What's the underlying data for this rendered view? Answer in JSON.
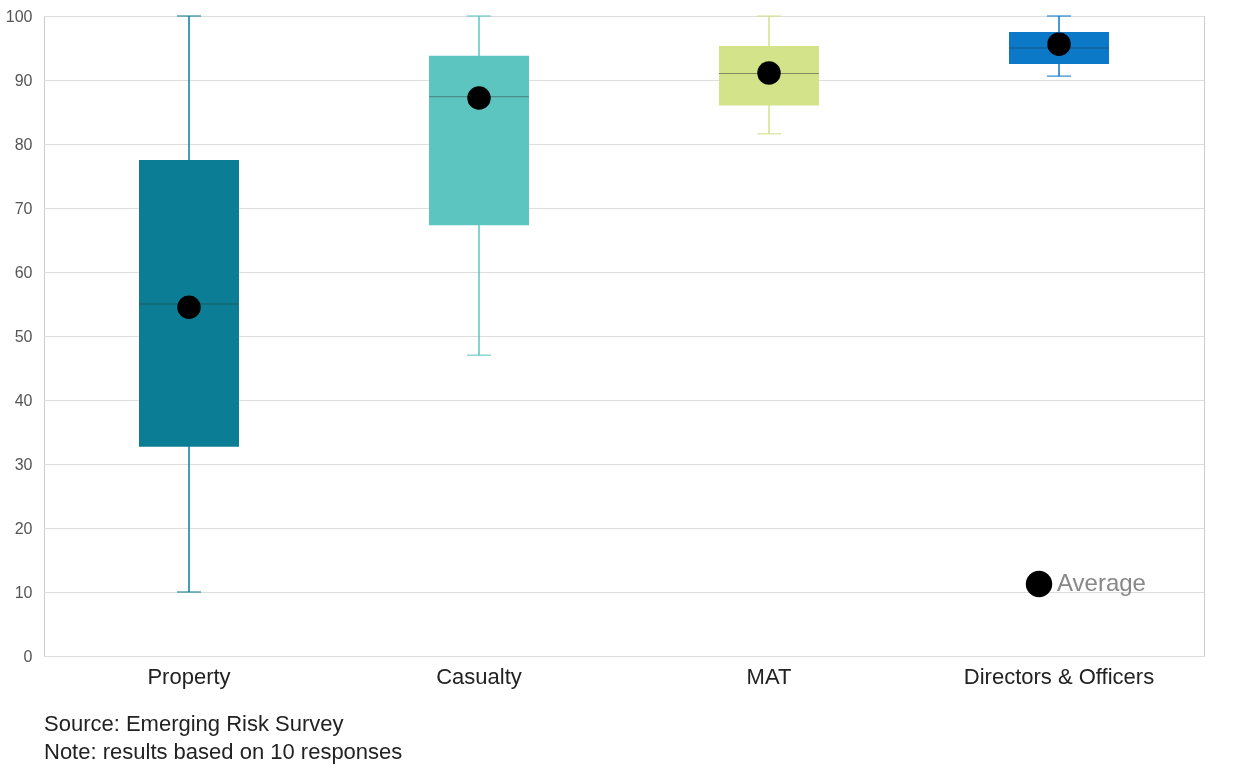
{
  "chart_data": {
    "type": "box",
    "categories": [
      "Property",
      "Casualty",
      "MAT",
      "Directors & Officers"
    ],
    "colors": [
      "#0b7e96",
      "#5cc5c0",
      "#d2e38a",
      "#0b78c8"
    ],
    "boxes": [
      {
        "low": 10,
        "q1": 32.7,
        "median": 55,
        "q3": 77.5,
        "high": 100
      },
      {
        "low": 47,
        "q1": 67.3,
        "median": 87.4,
        "q3": 93.8,
        "high": 100
      },
      {
        "low": 81.6,
        "q1": 86,
        "median": 91,
        "q3": 95.3,
        "high": 100
      },
      {
        "low": 90.6,
        "q1": 92.5,
        "median": 95,
        "q3": 97.5,
        "high": 100
      }
    ],
    "series": [
      {
        "type": "scatter",
        "name": "Average",
        "color": "#000000",
        "x": [
          "Property",
          "Casualty",
          "MAT",
          "Directors & Officers"
        ],
        "values": [
          54.5,
          87.2,
          91.1,
          95.6
        ]
      }
    ],
    "ylim": [
      0,
      100
    ],
    "yticks": [
      0,
      10,
      20,
      30,
      40,
      50,
      60,
      70,
      80,
      90,
      100
    ],
    "grid": "y",
    "legend": "bottom right",
    "marker": "circle",
    "annotations": [
      "Source: Emerging Risk Survey",
      "Note: results based on 10 responses"
    ]
  }
}
